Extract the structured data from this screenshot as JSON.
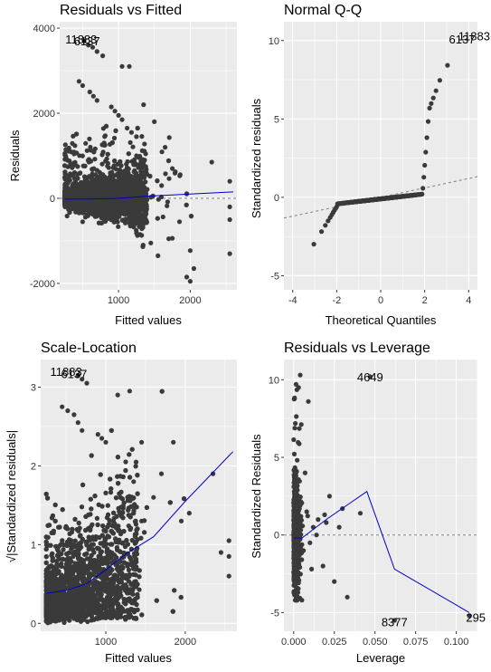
{
  "colors": {
    "panel_bg": "#ebebeb",
    "grid_major": "#ffffff",
    "point": "#3a3a3a",
    "smooth_line": "#0000cc",
    "ref_line": "#808080"
  },
  "chart_data": [
    {
      "id": "rvf",
      "type": "scatter",
      "title": "Residuals vs Fitted",
      "xlabel": "Fitted values",
      "ylabel": "Residuals",
      "xlim": [
        180,
        2650
      ],
      "ylim": [
        -2150,
        4150
      ],
      "xticks": [
        1000,
        2000
      ],
      "xtick_labels": [
        "1000",
        "2000"
      ],
      "yticks": [
        -2000,
        0,
        2000,
        4000
      ],
      "ytick_labels": [
        "-2000",
        "0",
        "2000",
        "4000"
      ],
      "ref_line": {
        "kind": "hline",
        "y": 0,
        "style": "dashed"
      },
      "smooth": {
        "x": [
          250,
          600,
          1000,
          1400,
          2000,
          2600
        ],
        "y": [
          -20,
          -15,
          0,
          50,
          100,
          150
        ]
      },
      "annotations": [
        {
          "text": "11883",
          "x": 480,
          "y": 3750
        },
        {
          "text": "6137",
          "x": 560,
          "y": 3700
        }
      ],
      "point_count": 3600,
      "extra_points": [
        {
          "x": 520,
          "y": 3700
        },
        {
          "x": 580,
          "y": 3600
        },
        {
          "x": 640,
          "y": 3550
        },
        {
          "x": 700,
          "y": 3450
        },
        {
          "x": 780,
          "y": 3350
        },
        {
          "x": 450,
          "y": 2750
        },
        {
          "x": 500,
          "y": 2650
        },
        {
          "x": 600,
          "y": 2500
        },
        {
          "x": 650,
          "y": 2400
        },
        {
          "x": 700,
          "y": 2300
        },
        {
          "x": 900,
          "y": 2150
        },
        {
          "x": 950,
          "y": 2050
        },
        {
          "x": 1000,
          "y": 1950
        },
        {
          "x": 1050,
          "y": 1850
        },
        {
          "x": 1120,
          "y": 1650
        },
        {
          "x": 1180,
          "y": 1550
        },
        {
          "x": 1250,
          "y": 1450
        },
        {
          "x": 1050,
          "y": 3100
        },
        {
          "x": 1150,
          "y": 3100
        },
        {
          "x": 1650,
          "y": 1200
        },
        {
          "x": 1750,
          "y": 700
        },
        {
          "x": 2550,
          "y": 400
        },
        {
          "x": 2550,
          "y": -200
        },
        {
          "x": 2550,
          "y": -500
        },
        {
          "x": 2550,
          "y": -1300
        },
        {
          "x": 2050,
          "y": -1650
        },
        {
          "x": 1950,
          "y": -1850
        },
        {
          "x": 2000,
          "y": -1950
        },
        {
          "x": 2300,
          "y": 850
        },
        {
          "x": 1700,
          "y": -950
        },
        {
          "x": 1550,
          "y": -1350
        },
        {
          "x": 1450,
          "y": -1050
        },
        {
          "x": 1300,
          "y": -850
        },
        {
          "x": 1850,
          "y": -550
        },
        {
          "x": 1600,
          "y": 300
        },
        {
          "x": 1350,
          "y": 2200
        },
        {
          "x": 1500,
          "y": 1800
        },
        {
          "x": 800,
          "y": 1300
        },
        {
          "x": 1250,
          "y": 1000
        }
      ]
    },
    {
      "id": "qq",
      "type": "scatter",
      "title": "Normal Q-Q",
      "xlabel": "Theoretical Quantiles",
      "ylabel": "Standardized residuals",
      "xlim": [
        -4.4,
        4.4
      ],
      "ylim": [
        -5.9,
        11.2
      ],
      "xticks": [
        -4,
        -2,
        0,
        2,
        4
      ],
      "xtick_labels": [
        "-4",
        "-2",
        "0",
        "2",
        "4"
      ],
      "yticks": [
        -5,
        0,
        5,
        10
      ],
      "ytick_labels": [
        "-5",
        "0",
        "5",
        "10"
      ],
      "ref_line": {
        "kind": "abline",
        "intercept": 0,
        "slope": 0.3,
        "style": "dashed"
      },
      "annotations": [
        {
          "text": "6137",
          "x": 3.7,
          "y": 10.1
        },
        {
          "text": "11883",
          "x": 4.25,
          "y": 10.3
        }
      ],
      "point_count": 420
    },
    {
      "id": "sl",
      "type": "scatter",
      "title": "Scale-Location",
      "xlabel": "Fitted values",
      "ylabel": "√|Standardized residuals|",
      "xlim": [
        180,
        2650
      ],
      "ylim": [
        -0.1,
        3.35
      ],
      "xticks": [
        1000,
        2000
      ],
      "xtick_labels": [
        "1000",
        "2000"
      ],
      "yticks": [
        0,
        1,
        2,
        3
      ],
      "ytick_labels": [
        "0",
        "1",
        "2",
        "3"
      ],
      "smooth": {
        "x": [
          250,
          500,
          750,
          1000,
          1250,
          1600,
          2000,
          2600
        ],
        "y": [
          0.38,
          0.42,
          0.5,
          0.68,
          0.88,
          1.1,
          1.55,
          2.18
        ]
      },
      "annotations": [
        {
          "text": "11883",
          "x": 500,
          "y": 3.2
        },
        {
          "text": "6137",
          "x": 600,
          "y": 3.17
        }
      ],
      "point_count": 3600,
      "extra_points": [
        {
          "x": 650,
          "y": 3.15
        },
        {
          "x": 700,
          "y": 3.1
        },
        {
          "x": 760,
          "y": 3.05
        },
        {
          "x": 450,
          "y": 2.75
        },
        {
          "x": 520,
          "y": 2.7
        },
        {
          "x": 600,
          "y": 2.65
        },
        {
          "x": 650,
          "y": 2.55
        },
        {
          "x": 700,
          "y": 2.45
        },
        {
          "x": 900,
          "y": 2.4
        },
        {
          "x": 950,
          "y": 2.35
        },
        {
          "x": 1000,
          "y": 2.3
        },
        {
          "x": 1150,
          "y": 2.9
        },
        {
          "x": 1300,
          "y": 2.95
        },
        {
          "x": 1850,
          "y": 2.3
        },
        {
          "x": 2550,
          "y": 1.05
        },
        {
          "x": 2550,
          "y": 0.6
        },
        {
          "x": 2450,
          "y": 0.9
        },
        {
          "x": 2550,
          "y": 0.85
        },
        {
          "x": 2350,
          "y": 1.9
        },
        {
          "x": 2050,
          "y": 1.4
        },
        {
          "x": 1950,
          "y": 1.3
        },
        {
          "x": 1600,
          "y": 1.6
        },
        {
          "x": 1450,
          "y": 1.3
        },
        {
          "x": 1350,
          "y": 1.8
        },
        {
          "x": 1700,
          "y": 1.9
        },
        {
          "x": 1450,
          "y": 2.3
        },
        {
          "x": 1250,
          "y": 2.05
        }
      ]
    },
    {
      "id": "rvl",
      "type": "scatter",
      "title": "Residuals vs Leverage",
      "xlabel": "Leverage",
      "ylabel": "Standardized Residuals",
      "xlim": [
        -0.006,
        0.113
      ],
      "ylim": [
        -6.2,
        11.3
      ],
      "xticks": [
        0,
        0.025,
        0.05,
        0.075,
        0.1
      ],
      "xtick_labels": [
        "0.000",
        "0.025",
        "0.050",
        "0.075",
        "0.100"
      ],
      "yticks": [
        -5,
        0,
        5,
        10
      ],
      "ytick_labels": [
        "-5",
        "0",
        "5",
        "10"
      ],
      "ref_line": {
        "kind": "hline",
        "y": 0,
        "style": "dashed"
      },
      "smooth": {
        "x": [
          0,
          0.005,
          0.02,
          0.045,
          0.062,
          0.108
        ],
        "y": [
          -0.2,
          -0.2,
          1,
          2.8,
          -2.2,
          -5
        ]
      },
      "annotations": [
        {
          "text": "4649",
          "x": 0.047,
          "y": 10.2
        },
        {
          "text": "8377",
          "x": 0.062,
          "y": -5.6
        },
        {
          "text": "295",
          "x": 0.112,
          "y": -5.3
        }
      ],
      "point_count": 700,
      "extra_points": [
        {
          "x": 0.047,
          "y": 10.2
        },
        {
          "x": 0.062,
          "y": -5.5
        },
        {
          "x": 0.108,
          "y": -5.2
        },
        {
          "x": 0.041,
          "y": 1.4
        },
        {
          "x": 0.033,
          "y": -4
        },
        {
          "x": 0.03,
          "y": 1.7
        },
        {
          "x": 0.025,
          "y": -3
        },
        {
          "x": 0.018,
          "y": -2
        },
        {
          "x": 0.019,
          "y": 1.3
        },
        {
          "x": 0.02,
          "y": 0.8
        },
        {
          "x": 0.015,
          "y": 1
        },
        {
          "x": 0.012,
          "y": 0.5
        },
        {
          "x": 0.01,
          "y": -0.5
        },
        {
          "x": 0.008,
          "y": 1.5
        },
        {
          "x": 0.006,
          "y": -1
        },
        {
          "x": 0.007,
          "y": 4
        },
        {
          "x": 0.004,
          "y": 10.3
        },
        {
          "x": 0.003,
          "y": 9.5
        },
        {
          "x": 0.022,
          "y": 2.5
        },
        {
          "x": 0.028,
          "y": 0.5
        },
        {
          "x": 0.009,
          "y": 8.6
        },
        {
          "x": 0.011,
          "y": -2.2
        },
        {
          "x": 0.014,
          "y": 0
        }
      ]
    }
  ]
}
